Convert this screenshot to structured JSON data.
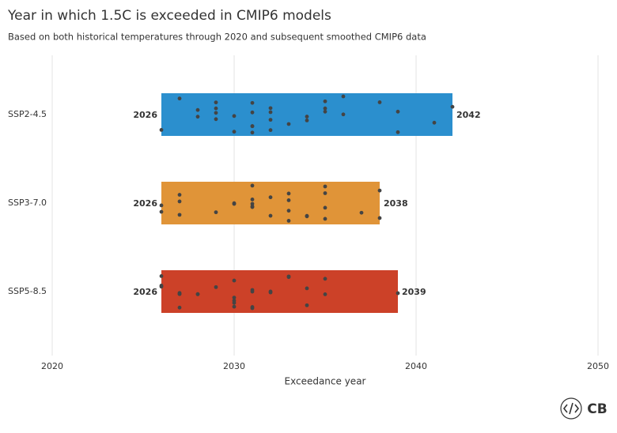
{
  "chart_data": {
    "type": "range",
    "title": "Year in which 1.5C is exceeded in CMIP6 models",
    "subtitle": "Based on both historical temperatures through 2020 and subsequent smoothed CMIP6 data",
    "xlabel": "Exceedance year",
    "xlim": [
      2020,
      2050
    ],
    "xticks": [
      2020,
      2030,
      2040,
      2050
    ],
    "grid": true,
    "point_color": "#444444",
    "series": [
      {
        "name": "SSP2-4.5",
        "color": "#2b8fce",
        "low": 2026,
        "high": 2042,
        "values": [
          2026,
          2027,
          2028,
          2028,
          2029,
          2029,
          2029,
          2029,
          2030,
          2030,
          2031,
          2031,
          2031,
          2031,
          2031,
          2032,
          2032,
          2032,
          2032,
          2033,
          2034,
          2034,
          2035,
          2035,
          2035,
          2036,
          2036,
          2038,
          2039,
          2039,
          2041,
          2042
        ]
      },
      {
        "name": "SSP3-7.0",
        "color": "#e09438",
        "low": 2026,
        "high": 2038,
        "values": [
          2026,
          2026,
          2027,
          2027,
          2027,
          2029,
          2030,
          2030,
          2031,
          2031,
          2031,
          2031,
          2031,
          2032,
          2032,
          2033,
          2033,
          2033,
          2033,
          2034,
          2034,
          2035,
          2035,
          2035,
          2035,
          2037,
          2038,
          2038
        ]
      },
      {
        "name": "SSP5-8.5",
        "color": "#cc4128",
        "low": 2026,
        "high": 2039,
        "values": [
          2026,
          2026,
          2026,
          2027,
          2027,
          2027,
          2027,
          2028,
          2028,
          2029,
          2030,
          2030,
          2030,
          2030,
          2030,
          2031,
          2031,
          2031,
          2031,
          2032,
          2032,
          2033,
          2033,
          2034,
          2034,
          2035,
          2035,
          2039
        ]
      }
    ]
  },
  "logo": "CB"
}
